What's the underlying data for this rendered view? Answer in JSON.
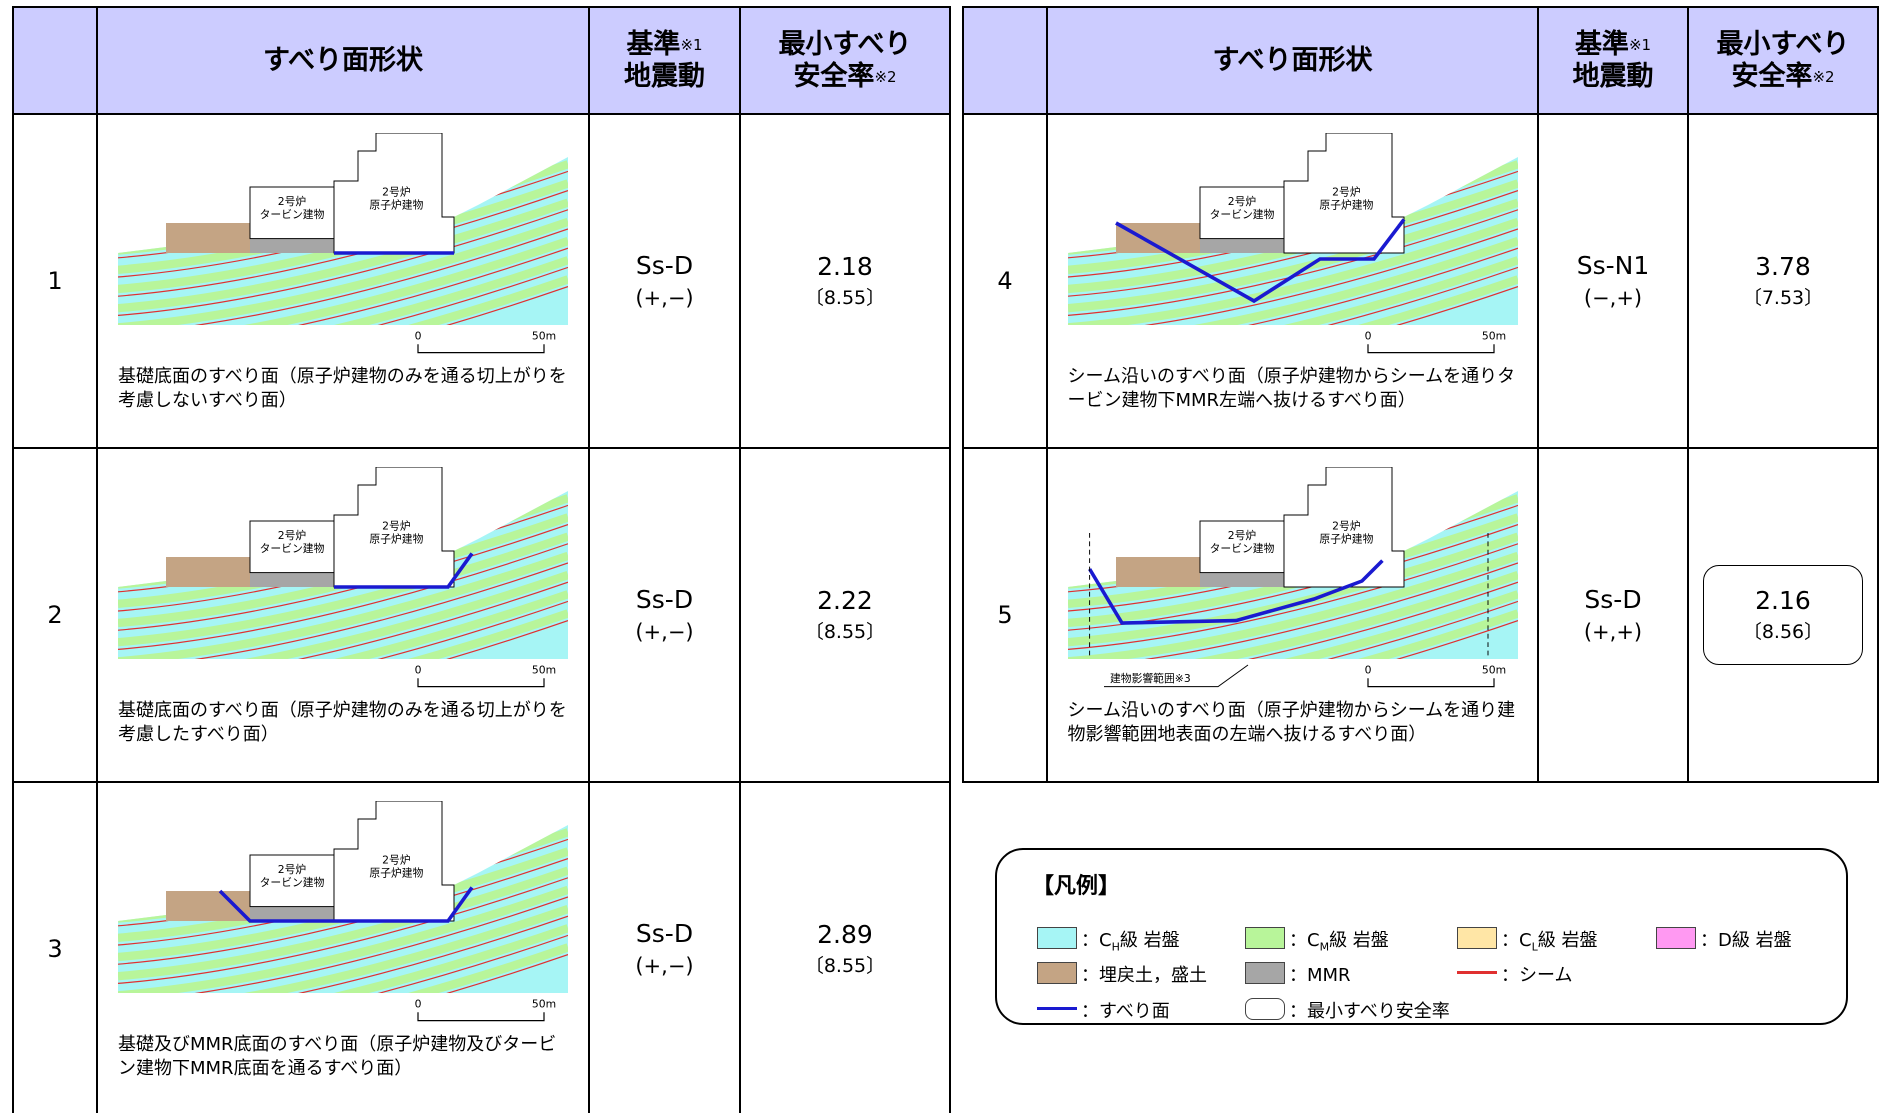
{
  "header": {
    "shape": "すべり面形状",
    "basis": "基準",
    "basis_note": "※1",
    "basis2": "地震動",
    "rate": "最小すべり",
    "rate2": "安全率",
    "rate_note": "※2"
  },
  "rows": [
    {
      "number": "1",
      "motion": "Ss-D",
      "sign": "(+,−)",
      "rate": 2.18,
      "bracket": "〔8.55〕",
      "caption": "基礎底面のすべり面（原子炉建物のみを通る切上がりを考慮しないすべり面）",
      "diagram": {
        "turbine": [
          "2号炉",
          "タービン建物"
        ],
        "reactor": [
          "2号炉",
          "原子炉建物"
        ],
        "scale": [
          "0",
          "50m"
        ]
      }
    },
    {
      "number": "2",
      "motion": "Ss-D",
      "sign": "(+,−)",
      "rate": 2.22,
      "bracket": "〔8.55〕",
      "caption": "基礎底面のすべり面（原子炉建物のみを通る切上がりを考慮したすべり面）",
      "diagram": {
        "turbine": [
          "2号炉",
          "タービン建物"
        ],
        "reactor": [
          "2号炉",
          "原子炉建物"
        ],
        "scale": [
          "0",
          "50m"
        ]
      }
    },
    {
      "number": "3",
      "motion": "Ss-D",
      "sign": "(+,−)",
      "rate": 2.89,
      "bracket": "〔8.55〕",
      "caption": "基礎及びMMR底面のすべり面（原子炉建物及びタービン建物下MMR底面を通るすべり面）",
      "diagram": {
        "turbine": [
          "2号炉",
          "タービン建物"
        ],
        "reactor": [
          "2号炉",
          "原子炉建物"
        ],
        "scale": [
          "0",
          "50m"
        ]
      }
    },
    {
      "number": "4",
      "motion": "Ss-N1",
      "sign": "(−,+)",
      "rate": 3.78,
      "bracket": "〔7.53〕",
      "caption": "シーム沿いのすべり面（原子炉建物からシームを通りタービン建物下MMR左端へ抜けるすべり面）",
      "diagram": {
        "turbine": [
          "2号炉",
          "タービン建物"
        ],
        "reactor": [
          "2号炉",
          "原子炉建物"
        ],
        "scale": [
          "0",
          "50m"
        ]
      }
    },
    {
      "number": "5",
      "motion": "Ss-D",
      "sign": "(+,+)",
      "rate": 2.16,
      "bracket": "〔8.56〕",
      "minimum": true,
      "caption": "シーム沿いのすべり面（原子炉建物からシームを通り建物影響範囲地表面の左端へ抜けるすべり面）",
      "diagram": {
        "turbine": [
          "2号炉",
          "タービン建物"
        ],
        "reactor": [
          "2号炉",
          "原子炉建物"
        ],
        "scale": [
          "0",
          "50m"
        ],
        "influence": "建物影響範囲※3"
      }
    }
  ],
  "legend": {
    "title": "【凡例】",
    "items": [
      {
        "kind": "box",
        "color": "#a6f5f5",
        "prefix": "：C",
        "sub": "H",
        "suffix": "級 岩盤"
      },
      {
        "kind": "box",
        "color": "#b8f59a",
        "prefix": "：C",
        "sub": "M",
        "suffix": "級 岩盤"
      },
      {
        "kind": "box",
        "color": "#ffe6a6",
        "prefix": "：C",
        "sub": "L",
        "suffix": "級 岩盤"
      },
      {
        "kind": "box",
        "color": "#ff99f2",
        "label": "：D級 岩盤"
      },
      {
        "kind": "box",
        "color": "#c4a484",
        "label": "：埋戻土，盛土"
      },
      {
        "kind": "box",
        "color": "#a6a6a6",
        "label": "：MMR"
      },
      {
        "kind": "line",
        "color": "#e03030",
        "label": "：シーム"
      },
      {
        "kind": "line",
        "color": "#1a1ad0",
        "label": "：すべり面"
      },
      {
        "kind": "round",
        "color": "#ffffff",
        "label": "：最小すべり安全率"
      }
    ]
  }
}
